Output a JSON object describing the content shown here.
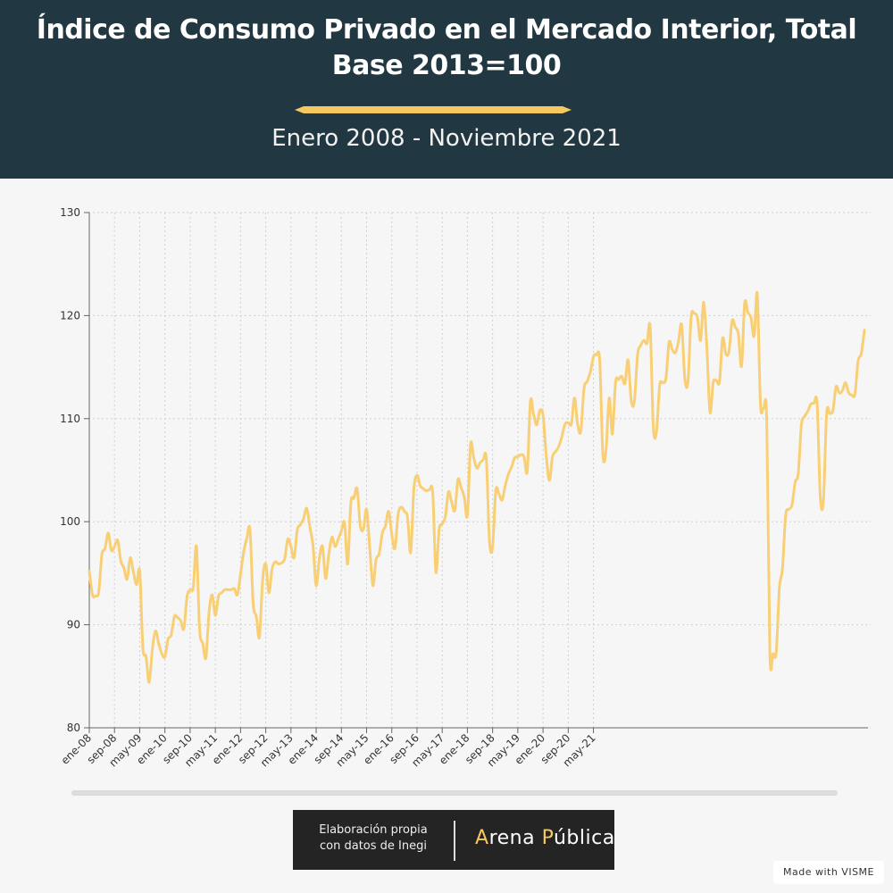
{
  "header": {
    "title_line1": "Índice de Consumo Privado en el Mercado Interior, Total",
    "title_line2": "Base 2013=100",
    "subtitle": "Enero 2008 - Noviembre 2021"
  },
  "colors": {
    "header_bg": "#213741",
    "accent": "#f6c95f",
    "line": "#f8cf74"
  },
  "chart_data": {
    "type": "line",
    "title": "Índice de Consumo Privado en el Mercado Interior, Total",
    "subtitle": "Enero 2008 - Noviembre 2021",
    "xlabel": "",
    "ylabel": "",
    "ylim": [
      80,
      130
    ],
    "yticks": [
      80,
      90,
      100,
      110,
      120,
      130
    ],
    "xtick_labels": [
      "ene-08",
      "sep-08",
      "may-09",
      "ene-10",
      "sep-10",
      "may-11",
      "ene-12",
      "sep-12",
      "may-13",
      "ene-14",
      "sep-14",
      "may-15",
      "ene-16",
      "sep-16",
      "may-17",
      "ene-18",
      "sep-18",
      "may-19",
      "ene-20",
      "sep-20",
      "may-21"
    ],
    "grid": true,
    "start_period": "ene-08",
    "series": [
      {
        "name": "",
        "values": [
          95.2,
          92.9,
          92.8,
          93.2,
          96.8,
          97.4,
          98.9,
          97.2,
          97.6,
          98.2,
          96.2,
          95.5,
          94.4,
          96.5,
          95.1,
          93.9,
          95.2,
          87.8,
          86.9,
          84.4,
          87.6,
          89.4,
          88.2,
          87.2,
          86.9,
          88.6,
          89.0,
          90.8,
          90.7,
          90.4,
          89.6,
          92.7,
          93.4,
          93.6,
          97.6,
          89.6,
          88.2,
          86.8,
          91.2,
          92.9,
          90.9,
          92.8,
          93.1,
          93.4,
          93.4,
          93.4,
          93.5,
          92.9,
          94.9,
          97.1,
          98.4,
          99.2,
          92.1,
          90.8,
          88.8,
          94.3,
          95.9,
          93.1,
          95.4,
          96.1,
          95.9,
          96.0,
          96.4,
          98.3,
          97.6,
          96.5,
          99.2,
          99.7,
          100.3,
          101.3,
          99.5,
          97.7,
          93.8,
          96.4,
          97.6,
          94.5,
          96.8,
          98.5,
          97.6,
          98.3,
          99.1,
          99.9,
          95.9,
          101.8,
          102.3,
          103.2,
          99.6,
          99.3,
          101.2,
          97.5,
          93.8,
          96.3,
          96.9,
          98.9,
          99.6,
          101.0,
          98.8,
          97.4,
          100.7,
          101.4,
          101.0,
          100.4,
          97.0,
          103.1,
          104.5,
          103.5,
          103.2,
          103.0,
          103.1,
          102.8,
          95.1,
          99.2,
          99.8,
          100.5,
          102.9,
          101.9,
          101.1,
          104.1,
          103.3,
          102.4,
          100.6,
          107.5,
          106.2,
          105.2,
          105.7,
          106.0,
          106.1,
          98.1,
          97.6,
          103.0,
          102.7,
          102.1,
          103.5,
          104.6,
          105.3,
          106.2,
          106.3,
          106.5,
          106.3,
          104.9,
          111.7,
          110.4,
          109.4,
          110.8,
          110.3,
          106.5,
          104.0,
          106.3,
          106.8,
          107.3,
          108.3,
          109.5,
          109.6,
          109.5,
          112.0,
          109.4,
          108.8,
          112.9,
          113.6,
          114.5,
          116.0,
          116.2,
          115.6,
          106.5,
          107.0,
          112.0,
          108.5,
          113.5,
          113.8,
          114.1,
          113.4,
          115.7,
          111.7,
          111.7,
          116.2,
          117.1,
          117.6,
          117.3,
          118.9,
          109.2,
          108.7,
          113.2,
          113.5,
          113.9,
          117.4,
          116.7,
          116.4,
          117.5,
          119.1,
          113.9,
          113.6,
          119.8,
          120.2,
          119.8,
          117.6,
          121.3,
          116.8,
          110.6,
          113.5,
          113.7,
          113.6,
          117.8,
          116.3,
          116.5,
          119.5,
          118.9,
          118.2,
          115.1,
          121.2,
          120.3,
          119.8,
          118.0,
          122.1,
          111.4,
          111.0,
          109.8,
          87.3,
          87.2,
          87.3,
          93.5,
          95.5,
          100.6,
          101.2,
          101.6,
          103.8,
          104.7,
          109.4,
          110.2,
          110.7,
          111.4,
          111.5,
          111.4,
          102.4,
          102.1,
          110.5,
          110.5,
          110.8,
          113.1,
          112.5,
          112.7,
          113.5,
          112.5,
          112.3,
          112.4,
          115.6,
          116.3,
          118.6
        ]
      }
    ]
  },
  "credit": {
    "line1": "Elaboración propia",
    "line2": "con datos de Inegi",
    "brand_a": "A",
    "brand_b": "rena ",
    "brand_c": "P",
    "brand_d": "ública"
  },
  "badge": "Made with VISME"
}
